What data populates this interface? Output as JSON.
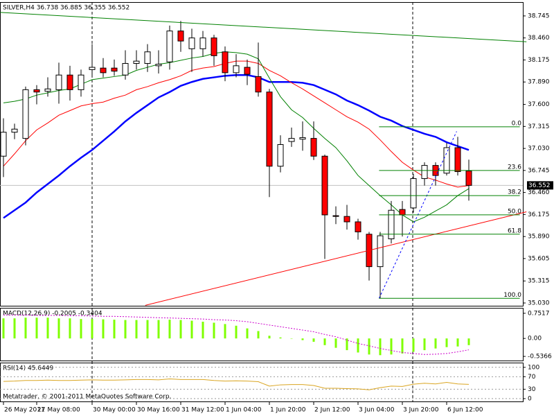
{
  "chart_data": [
    {
      "type": "candlestick",
      "title": "SILVER,H4  36.738 36.885 36.355 36.552",
      "categories": [
        "26 May 2011",
        null,
        null,
        "27 May 08:00",
        null,
        null,
        null,
        null,
        "30 May 00:00",
        null,
        null,
        null,
        "30 May 16:00",
        null,
        null,
        null,
        "31 May 12:00",
        null,
        null,
        null,
        "1 Jun 04:00",
        null,
        null,
        null,
        "1 Jun 20:00",
        null,
        null,
        null,
        "2 Jun 12:00",
        null,
        null,
        null,
        "3 Jun 04:00",
        null,
        null,
        null,
        "3 Jun 20:00",
        null,
        null,
        null,
        "6 Jun 12:00",
        null,
        null
      ],
      "candles": {
        "open": [
          36.93,
          37.24,
          37.16,
          37.79,
          37.77,
          37.79,
          37.98,
          37.79,
          38.05,
          38.07,
          38.07,
          37.98,
          38.13,
          38.13,
          38.1,
          38.15,
          38.55,
          38.32,
          38.32,
          38.46,
          38.28,
          38.01,
          38.08,
          37.96,
          37.76,
          36.8,
          37.12,
          37.15,
          37.16,
          36.93,
          36.16,
          36.15,
          36.08,
          35.92,
          35.5,
          35.86,
          36.24,
          36.26,
          36.64,
          36.81,
          36.71,
          37.04,
          36.738
        ],
        "high": [
          37.42,
          37.35,
          37.83,
          37.85,
          37.95,
          38.14,
          38.1,
          38.05,
          38.38,
          38.2,
          38.18,
          38.3,
          38.3,
          38.38,
          38.3,
          38.62,
          38.68,
          38.58,
          38.55,
          38.5,
          38.35,
          38.25,
          38.18,
          38.4,
          37.8,
          37.2,
          37.3,
          37.38,
          37.38,
          36.95,
          36.28,
          36.3,
          36.12,
          35.95,
          35.95,
          36.35,
          36.35,
          36.7,
          36.85,
          36.85,
          37.1,
          37.18,
          36.885
        ],
        "low": [
          36.66,
          37.15,
          37.07,
          37.6,
          37.7,
          37.61,
          37.65,
          37.7,
          37.95,
          37.95,
          37.97,
          37.92,
          38.05,
          38.02,
          38.0,
          38.05,
          38.28,
          38.02,
          38.22,
          38.1,
          37.9,
          37.95,
          37.85,
          37.7,
          36.4,
          36.72,
          37.05,
          37.0,
          36.88,
          35.6,
          36.05,
          35.98,
          35.85,
          35.32,
          35.09,
          35.8,
          35.89,
          36.2,
          36.55,
          36.55,
          36.68,
          36.68,
          36.355
        ],
        "close": [
          37.24,
          37.28,
          37.79,
          37.76,
          37.8,
          37.98,
          37.79,
          37.98,
          38.08,
          38.01,
          38.03,
          38.13,
          38.16,
          38.28,
          38.12,
          38.55,
          38.42,
          38.46,
          38.46,
          38.23,
          38.01,
          38.1,
          37.99,
          37.76,
          36.8,
          37.08,
          37.16,
          37.17,
          36.93,
          36.17,
          36.15,
          36.08,
          35.95,
          35.5,
          35.9,
          36.23,
          36.17,
          36.64,
          36.81,
          36.68,
          37.04,
          36.73,
          36.552
        ]
      },
      "bull_color": "#ffffff",
      "bear_color": "#ff0000",
      "series": [
        {
          "color": "#0000ff",
          "values": [
            36.13,
            36.23,
            36.33,
            36.46,
            36.57,
            36.68,
            36.8,
            36.91,
            37.01,
            37.13,
            37.25,
            37.38,
            37.49,
            37.59,
            37.69,
            37.76,
            37.84,
            37.89,
            37.93,
            37.95,
            37.97,
            37.98,
            37.98,
            37.95,
            37.89,
            37.89,
            37.89,
            37.88,
            37.85,
            37.79,
            37.73,
            37.65,
            37.59,
            37.52,
            37.44,
            37.39,
            37.32,
            37.27,
            37.22,
            37.18,
            37.11,
            37.06,
            37.01
          ]
        },
        {
          "color": "#ff0000",
          "values": [
            36.8,
            36.96,
            37.13,
            37.27,
            37.36,
            37.46,
            37.52,
            37.58,
            37.61,
            37.63,
            37.68,
            37.72,
            37.79,
            37.83,
            37.88,
            37.92,
            37.97,
            38.04,
            38.07,
            38.09,
            38.13,
            38.16,
            38.16,
            38.13,
            38.04,
            37.97,
            37.88,
            37.8,
            37.71,
            37.62,
            37.53,
            37.44,
            37.37,
            37.28,
            37.14,
            36.99,
            36.85,
            36.75,
            36.66,
            36.62,
            36.57,
            36.53,
            36.55
          ]
        },
        {
          "color": "#008000",
          "values": [
            37.62,
            37.64,
            37.67,
            37.72,
            37.75,
            37.78,
            37.8,
            37.86,
            37.92,
            37.94,
            37.96,
            37.98,
            38.04,
            38.08,
            38.12,
            38.14,
            38.17,
            38.2,
            38.22,
            38.26,
            38.28,
            38.27,
            38.25,
            38.19,
            37.94,
            37.7,
            37.53,
            37.43,
            37.29,
            37.16,
            37.04,
            36.87,
            36.68,
            36.55,
            36.42,
            36.3,
            36.17,
            36.08,
            36.14,
            36.22,
            36.3,
            36.42,
            36.51
          ]
        }
      ],
      "trendlines": [
        {
          "color": "#008000",
          "x": [
            -0.3,
            47.2
          ],
          "y": [
            38.79,
            38.41
          ]
        },
        {
          "color": "#ff0000",
          "x": [
            12.8,
            47.2
          ],
          "y": [
            35.0,
            36.21
          ]
        },
        {
          "color": "#0000ff",
          "x": [
            33.9,
            40.9
          ],
          "y": [
            35.09,
            37.25
          ],
          "dashed": true
        }
      ],
      "fibonacci": {
        "color": "#008000",
        "x": [
          33.9,
          46.6
        ],
        "levels": [
          {
            "label": "0.0",
            "value": 37.31
          },
          {
            "label": "23.6",
            "value": 36.745
          },
          {
            "label": "38.2",
            "value": 36.42
          },
          {
            "label": "50.0",
            "value": 36.17
          },
          {
            "label": "61.8",
            "value": 35.92
          },
          {
            "label": "100.0",
            "value": 35.09
          }
        ]
      },
      "current_price": 36.552,
      "ylim": [
        34.994,
        38.924
      ],
      "yticks": [
        38.745,
        {
          "value": 38.46,
          "label": "38.460"
        },
        38.175,
        {
          "value": 37.89,
          "label": "37.890"
        },
        {
          "value": 37.6,
          "label": "37.600"
        },
        37.315,
        {
          "value": 37.03,
          "label": "37.030"
        },
        36.745,
        {
          "value": 36.46,
          "label": "36.460"
        },
        36.175,
        {
          "value": 35.89,
          "label": "35.890"
        },
        35.605,
        35.315,
        {
          "value": 35.03,
          "label": "35.030"
        }
      ]
    },
    {
      "type": "macd",
      "title": "MACD(12,26,9) -0.2005 -0.3404",
      "histogram": {
        "color": "#7fff00",
        "values": [
          0.6,
          0.6,
          0.62,
          0.62,
          0.62,
          0.6,
          0.6,
          0.58,
          0.58,
          0.57,
          0.56,
          0.55,
          0.55,
          0.55,
          0.55,
          0.56,
          0.55,
          0.53,
          0.5,
          0.47,
          0.43,
          0.38,
          0.3,
          0.22,
          0.08,
          0.03,
          -0.01,
          -0.05,
          -0.1,
          -0.2,
          -0.28,
          -0.35,
          -0.42,
          -0.48,
          -0.5,
          -0.48,
          -0.45,
          -0.4,
          -0.35,
          -0.3,
          -0.26,
          -0.24,
          -0.2005
        ]
      },
      "signal": {
        "color": "#cc00cc",
        "values": [
          0.7,
          0.7,
          0.7,
          0.69,
          0.69,
          0.69,
          0.68,
          0.68,
          0.67,
          0.66,
          0.66,
          0.65,
          0.64,
          0.63,
          0.62,
          0.61,
          0.6,
          0.59,
          0.58,
          0.56,
          0.55,
          0.53,
          0.5,
          0.45,
          0.4,
          0.35,
          0.3,
          0.25,
          0.2,
          0.12,
          0.05,
          -0.05,
          -0.15,
          -0.22,
          -0.3,
          -0.36,
          -0.42,
          -0.45,
          -0.48,
          -0.47,
          -0.45,
          -0.4,
          -0.3404
        ]
      },
      "ylim": [
        -0.66,
        0.914
      ],
      "yticks": [
        0.7517,
        {
          "value": 0,
          "label": "0.00"
        },
        -0.5366
      ]
    },
    {
      "type": "line",
      "title": "RSI(14) 45.6449",
      "series": [
        {
          "color": "#daa520",
          "values": [
            55,
            56,
            58,
            58,
            59,
            58,
            58,
            59,
            60,
            59,
            59,
            60,
            61,
            61,
            60,
            63,
            61,
            61,
            61,
            58,
            56,
            57,
            56,
            54,
            40,
            44,
            45,
            45,
            42,
            33,
            33,
            32,
            31,
            28,
            35,
            40,
            39,
            46,
            49,
            47,
            52,
            47,
            45.6449
          ]
        }
      ],
      "ylim": [
        -9,
        115
      ],
      "yticks": [
        100,
        70,
        30,
        0
      ]
    }
  ],
  "copyright": "Metatrader, © 2001-2011 MetaQuotes Software Corp."
}
